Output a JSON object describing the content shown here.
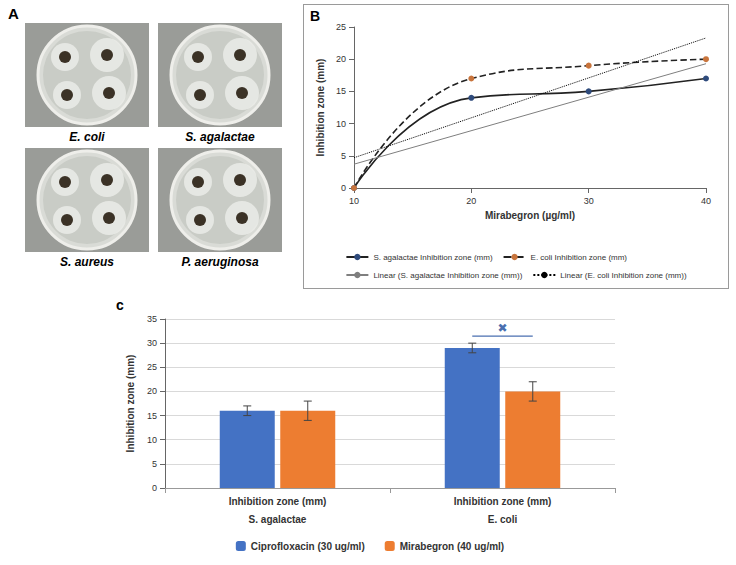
{
  "photo_panel": {
    "panel_label": "A",
    "plates": [
      "E. coli",
      "S. agalactae",
      "S. aureus",
      "P. aeruginosa"
    ]
  },
  "chart_data": [
    {
      "panel_label": "B",
      "type": "line",
      "x_label": "Mirabegron (µg/ml)",
      "y_label": "Inhibition zone (mm)",
      "xlim": [
        10,
        40
      ],
      "xticks": [
        10,
        20,
        30,
        40
      ],
      "ylim": [
        0,
        25
      ],
      "yticks": [
        0,
        5,
        10,
        15,
        20,
        25
      ],
      "grid": false,
      "legend": "bottom",
      "series": [
        {
          "name": "S. agalactae Inhibition zone (mm)",
          "x": [
            10,
            20,
            30,
            40
          ],
          "values": [
            0,
            14,
            15,
            17
          ],
          "color": "#2f4b7c",
          "line_style": "solid",
          "marker": "circle"
        },
        {
          "name": "E. coli Inhibition zone (mm)",
          "x": [
            10,
            20,
            30,
            40
          ],
          "values": [
            0,
            17,
            19,
            20
          ],
          "color": "#c8743c",
          "line_style": "dashed",
          "marker": "circle"
        },
        {
          "name": "Linear (S. agalactae Inhibition zone (mm))",
          "x": [
            10,
            40
          ],
          "values": [
            3.7,
            19.3
          ],
          "color": "#7f7f7f",
          "line_style": "solid",
          "marker": "none"
        },
        {
          "name": "Linear (E. coli Inhibition zone (mm))",
          "x": [
            10,
            40
          ],
          "values": [
            4.7,
            23.3
          ],
          "color": "#000000",
          "line_style": "dotted",
          "marker": "none"
        }
      ]
    },
    {
      "panel_label": "c",
      "type": "bar",
      "categories": [
        "Inhibition zone (mm)",
        "Inhibition zone (mm)"
      ],
      "groups": [
        "S. agalactae",
        "E. coli"
      ],
      "y_label": "Inhibition zone (mm)",
      "ylim": [
        0,
        35
      ],
      "yticks": [
        0,
        5,
        10,
        15,
        20,
        25,
        30,
        35
      ],
      "grid": true,
      "legend": "bottom",
      "series": [
        {
          "name": "Ciprofloxacin (30 ug/ml)",
          "color": "#4472c4",
          "values": [
            16,
            29
          ],
          "errors": [
            1,
            1
          ]
        },
        {
          "name": "Mirabegron (40 ug/ml)",
          "color": "#ed7d31",
          "values": [
            16,
            20
          ],
          "errors": [
            2,
            2
          ]
        }
      ],
      "annotation": {
        "text": "✖",
        "category": "E. coli"
      }
    }
  ]
}
